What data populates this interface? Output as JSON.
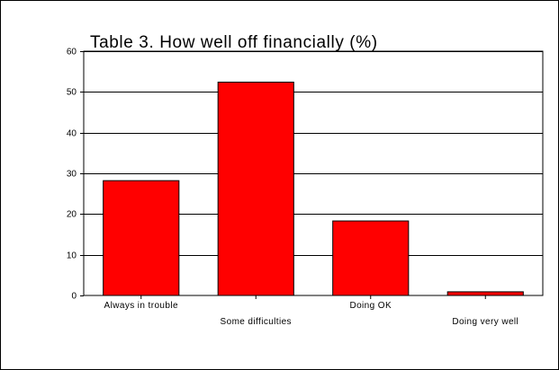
{
  "chart_data": {
    "type": "bar",
    "title": "Table 3. How well off financially (%)",
    "categories": [
      "Always in trouble",
      "Some difficulties",
      "Doing OK",
      "Doing very well"
    ],
    "values": [
      28.2,
      52.4,
      18.3,
      0.9
    ],
    "ylim": [
      0,
      60
    ],
    "yticks": [
      0,
      10,
      20,
      30,
      40,
      50,
      60
    ],
    "ytick_labels": [
      "0",
      "10",
      "20",
      "30",
      "40",
      "50",
      "60"
    ],
    "xlabel": "",
    "ylabel": "",
    "grid": true,
    "legend": "none",
    "bar_color": "#ff0000",
    "bar_edge_color": "#000000"
  }
}
